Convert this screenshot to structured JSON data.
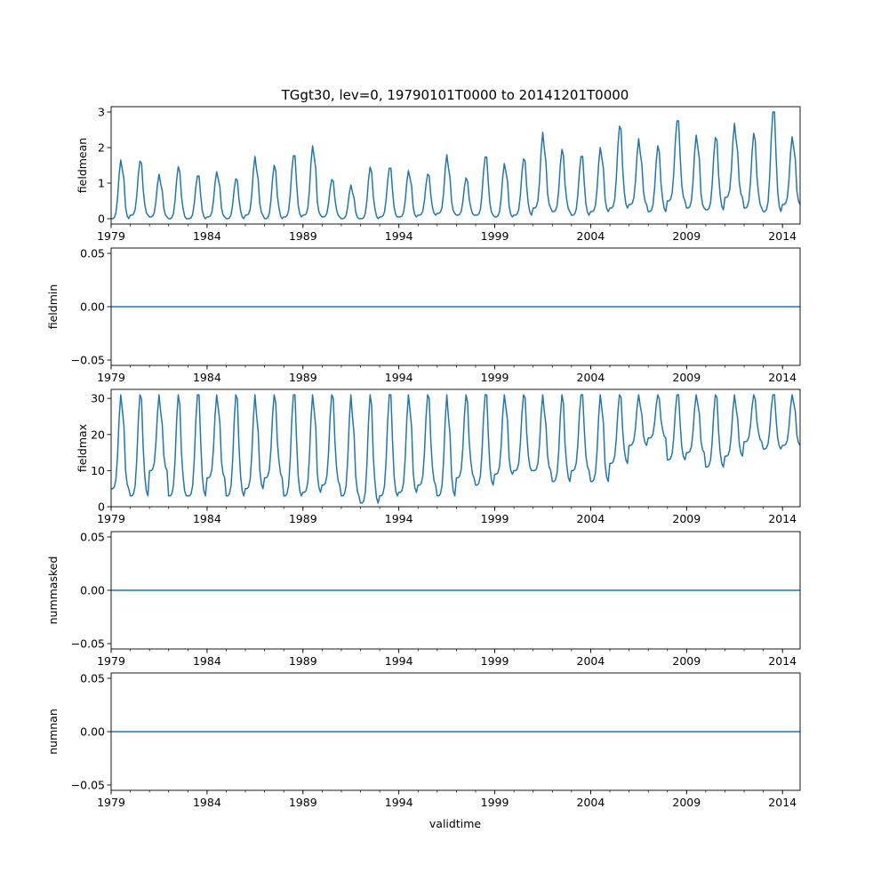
{
  "chart_data": {
    "type": "line",
    "title": "TGgt30, lev=0, 19790101T0000 to 20141201T0000",
    "xlabel": "validtime",
    "x_range": [
      1979.0,
      2014.917
    ],
    "x_ticks": [
      1979,
      1984,
      1989,
      1994,
      1999,
      2004,
      2009,
      2014
    ],
    "x_tick_labels": [
      "1979",
      "1984",
      "1989",
      "1994",
      "1999",
      "2004",
      "2009",
      "2014"
    ],
    "series_color": "#1f77b4",
    "panels": [
      {
        "name": "fieldmean",
        "ylabel": "fieldmean",
        "ylim": [
          -0.15,
          3.15
        ],
        "y_ticks": [
          0,
          1,
          2,
          3
        ],
        "y_tick_labels": [
          "0",
          "1",
          "2",
          "3"
        ],
        "start": 1979.0,
        "step_years": 0.08333,
        "annual_peaks": [
          1.65,
          1.62,
          1.25,
          1.46,
          1.2,
          1.32,
          1.12,
          1.75,
          1.5,
          1.77,
          2.05,
          1.1,
          0.95,
          1.45,
          1.42,
          1.35,
          1.25,
          1.8,
          1.15,
          1.73,
          1.55,
          1.68,
          2.43,
          1.95,
          1.75,
          2.0,
          2.6,
          2.25,
          2.05,
          2.75,
          2.35,
          2.28,
          2.68,
          2.4,
          3.0,
          2.3
        ],
        "annual_troughs": [
          0.0,
          0.1,
          0.05,
          0.0,
          0.0,
          0.05,
          0.0,
          0.1,
          0.0,
          0.05,
          0.1,
          0.05,
          0.0,
          0.0,
          0.05,
          0.05,
          0.1,
          0.15,
          0.1,
          0.1,
          0.05,
          0.1,
          0.3,
          0.2,
          0.1,
          0.2,
          0.3,
          0.4,
          0.2,
          0.5,
          0.3,
          0.25,
          0.6,
          0.3,
          0.2,
          0.4
        ]
      },
      {
        "name": "fieldmin",
        "ylabel": "fieldmin",
        "ylim": [
          -0.055,
          0.055
        ],
        "y_ticks": [
          -0.05,
          0.0,
          0.05
        ],
        "y_tick_labels": [
          "−0.05",
          "0.00",
          "0.05"
        ],
        "constant": 0.0
      },
      {
        "name": "fieldmax",
        "ylabel": "fieldmax",
        "ylim": [
          0,
          32.5
        ],
        "y_ticks": [
          0,
          10,
          20,
          30
        ],
        "y_tick_labels": [
          "0",
          "10",
          "20",
          "30"
        ],
        "start": 1979.0,
        "step_years": 0.08333,
        "annual_peaks": [
          31,
          31,
          31,
          31,
          31,
          31,
          31,
          31,
          31,
          31,
          31,
          31,
          31,
          31,
          31,
          31,
          31,
          31,
          31,
          31,
          31,
          31,
          31,
          31,
          31,
          31,
          31,
          31,
          31,
          31,
          31,
          31,
          31,
          31,
          31,
          31
        ],
        "annual_troughs": [
          5,
          3,
          10,
          3,
          3,
          8,
          3,
          5,
          8,
          3,
          4,
          6,
          3,
          1,
          3,
          4,
          6,
          3,
          8,
          6,
          9,
          10,
          10,
          7,
          10,
          7,
          12,
          17,
          19,
          13,
          15,
          11,
          14,
          18,
          16,
          17
        ]
      },
      {
        "name": "nummasked",
        "ylabel": "nummasked",
        "ylim": [
          -0.055,
          0.055
        ],
        "y_ticks": [
          -0.05,
          0.0,
          0.05
        ],
        "y_tick_labels": [
          "−0.05",
          "0.00",
          "0.05"
        ],
        "constant": 0.0
      },
      {
        "name": "numnan",
        "ylabel": "numnan",
        "ylim": [
          -0.055,
          0.055
        ],
        "y_ticks": [
          -0.05,
          0.0,
          0.05
        ],
        "y_tick_labels": [
          "−0.05",
          "0.00",
          "0.05"
        ],
        "constant": 0.0
      }
    ]
  }
}
